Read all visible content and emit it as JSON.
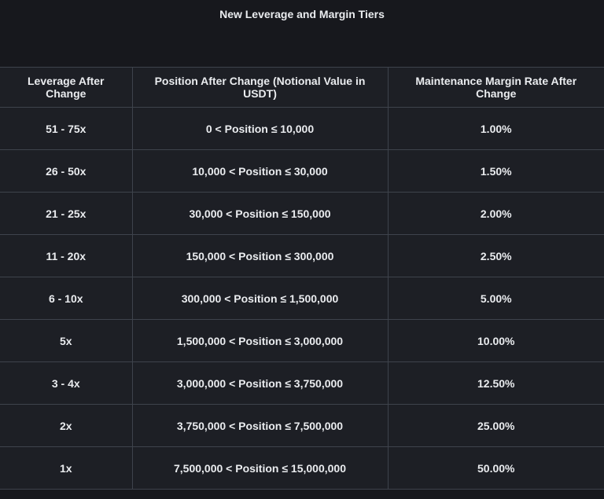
{
  "page": {
    "title": "New Leverage and Margin Tiers"
  },
  "colors": {
    "page_background": "#17181d",
    "cell_background": "#1d1f25",
    "border": "#3e434c",
    "text": "#eaecef"
  },
  "table": {
    "columns": [
      "Leverage After Change",
      "Position After Change (Notional Value in USDT)",
      "Maintenance Margin Rate After Change"
    ],
    "rows": [
      {
        "leverage": "51 - 75x",
        "position": "0 < Position ≤ 10,000",
        "margin_rate": "1.00%"
      },
      {
        "leverage": "26 - 50x",
        "position": "10,000 < Position ≤ 30,000",
        "margin_rate": "1.50%"
      },
      {
        "leverage": "21 - 25x",
        "position": "30,000 < Position ≤ 150,000",
        "margin_rate": "2.00%"
      },
      {
        "leverage": "11 - 20x",
        "position": "150,000 < Position ≤ 300,000",
        "margin_rate": "2.50%"
      },
      {
        "leverage": "6 - 10x",
        "position": "300,000 < Position ≤ 1,500,000",
        "margin_rate": "5.00%"
      },
      {
        "leverage": "5x",
        "position": "1,500,000 < Position ≤ 3,000,000",
        "margin_rate": "10.00%"
      },
      {
        "leverage": "3 - 4x",
        "position": "3,000,000 < Position ≤ 3,750,000",
        "margin_rate": "12.50%"
      },
      {
        "leverage": "2x",
        "position": "3,750,000 < Position ≤ 7,500,000",
        "margin_rate": "25.00%"
      },
      {
        "leverage": "1x",
        "position": "7,500,000 < Position ≤ 15,000,000",
        "margin_rate": "50.00%"
      }
    ]
  },
  "chart_data": {
    "type": "table",
    "title": "New Leverage and Margin Tiers",
    "columns": [
      "Leverage After Change",
      "Position After Change (Notional Value in USDT)",
      "Maintenance Margin Rate After Change"
    ],
    "rows": [
      [
        "51 - 75x",
        "0 < Position ≤ 10,000",
        "1.00%"
      ],
      [
        "26 - 50x",
        "10,000 < Position ≤ 30,000",
        "1.50%"
      ],
      [
        "21 - 25x",
        "30,000 < Position ≤ 150,000",
        "2.00%"
      ],
      [
        "11 - 20x",
        "150,000 < Position ≤ 300,000",
        "2.50%"
      ],
      [
        "6 - 10x",
        "300,000 < Position ≤ 1,500,000",
        "5.00%"
      ],
      [
        "5x",
        "1,500,000 < Position ≤ 3,000,000",
        "10.00%"
      ],
      [
        "3 - 4x",
        "3,000,000 < Position ≤ 3,750,000",
        "12.50%"
      ],
      [
        "2x",
        "3,750,000 < Position ≤ 7,500,000",
        "25.00%"
      ],
      [
        "1x",
        "7,500,000 < Position ≤ 15,000,000",
        "50.00%"
      ]
    ],
    "maintenance_margin_rates_pct": [
      1.0,
      1.5,
      2.0,
      2.5,
      5.0,
      10.0,
      12.5,
      25.0,
      50.0
    ],
    "position_upper_bounds_usdt": [
      10000,
      30000,
      150000,
      300000,
      1500000,
      3000000,
      3750000,
      7500000,
      15000000
    ]
  }
}
